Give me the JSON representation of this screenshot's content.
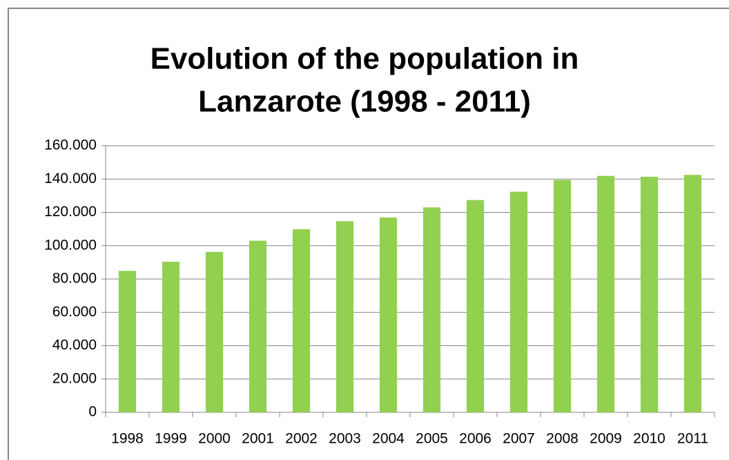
{
  "chart_data": {
    "type": "bar",
    "title": [
      "Evolution of the population in",
      "Lanzarote (1998 - 2011)"
    ],
    "categories": [
      "1998",
      "1999",
      "2000",
      "2001",
      "2002",
      "2003",
      "2004",
      "2005",
      "2006",
      "2007",
      "2008",
      "2009",
      "2010",
      "2011"
    ],
    "values": [
      84900,
      90400,
      96300,
      103000,
      109900,
      114700,
      116900,
      123000,
      127400,
      132400,
      139500,
      141900,
      141400,
      142500
    ],
    "color": "#92d050",
    "ylim": [
      0,
      160000
    ],
    "yticks": [
      0,
      {
        "value": 20000,
        "label": "20.000"
      },
      {
        "value": 40000,
        "label": "40.000"
      },
      {
        "value": 60000,
        "label": "60.000"
      },
      {
        "value": 80000,
        "label": "80.000"
      },
      {
        "value": 100000,
        "label": "100.000"
      },
      {
        "value": 120000,
        "label": "120.000"
      },
      {
        "value": 140000,
        "label": "140.000"
      },
      {
        "value": 160000,
        "label": "160.000"
      }
    ],
    "grid": true
  }
}
